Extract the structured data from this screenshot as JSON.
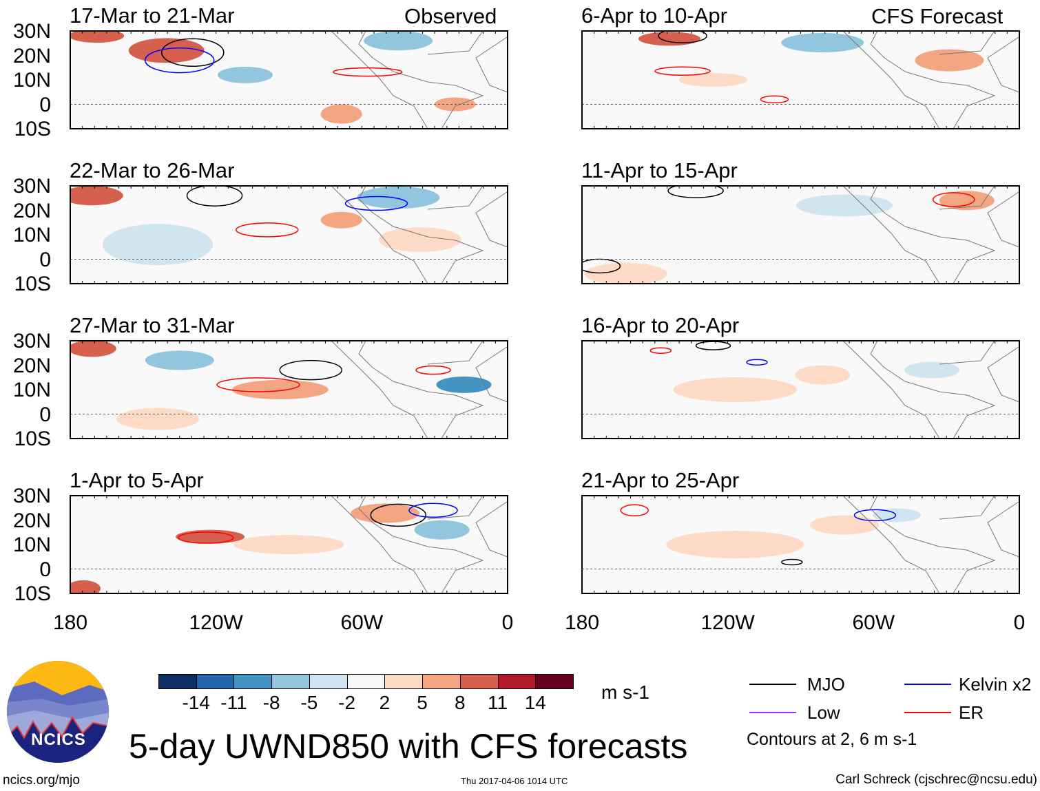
{
  "header": {
    "left_label": "Observed",
    "right_label": "CFS Forecast"
  },
  "panels": {
    "left": [
      "17-Mar to 21-Mar",
      "22-Mar to 26-Mar",
      "27-Mar to 31-Mar",
      "1-Apr to 5-Apr"
    ],
    "right": [
      "6-Apr to 10-Apr",
      "11-Apr to 15-Apr",
      "16-Apr to 20-Apr",
      "21-Apr to 25-Apr"
    ]
  },
  "axes": {
    "lat_labels": [
      "30N",
      "20N",
      "10N",
      "0",
      "10S"
    ],
    "lon_labels": [
      "180",
      "120W",
      "60W",
      "0"
    ]
  },
  "colorbar": {
    "colors": [
      "#0b2f63",
      "#2166ac",
      "#4393c3",
      "#92c5de",
      "#d1e5f0",
      "#f7f7f7",
      "#fddbc7",
      "#f4a582",
      "#d6604d",
      "#b2182b",
      "#67001f"
    ],
    "labels": [
      "-14",
      "-11",
      "-8",
      "-5",
      "-2",
      "2",
      "5",
      "8",
      "11",
      "14"
    ],
    "units": "m s-1"
  },
  "legend": {
    "items": [
      {
        "label": "MJO",
        "color": "#000000"
      },
      {
        "label": "Kelvin x2",
        "color": "#0000ff"
      },
      {
        "label": "Low",
        "color": "#9b30ff"
      },
      {
        "label": "ER",
        "color": "#ff0000"
      }
    ],
    "note": "Contours at 2, 6 m s-1"
  },
  "footer": {
    "title": "5-day UWND850 with CFS forecasts",
    "site": "ncics.org/mjo",
    "timestamp": "Thu 2017-04-06 1014 UTC",
    "author": "Carl Schreck (cjschrec@ncsu.edu)",
    "logo_text": "NCICS"
  }
}
